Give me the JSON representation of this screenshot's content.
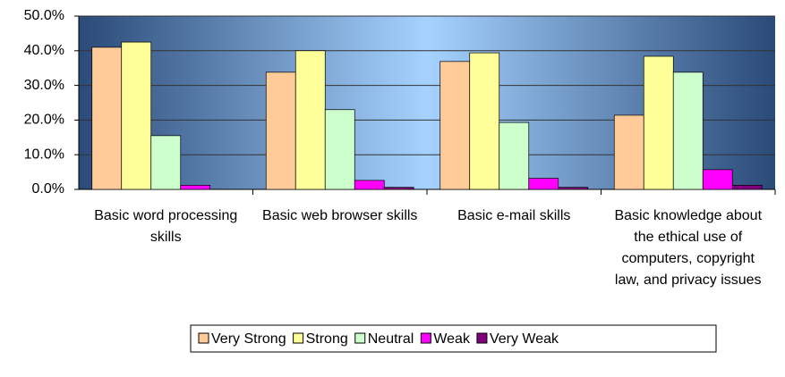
{
  "chart_data": {
    "type": "bar",
    "categories": [
      "Basic word processing skills",
      "Basic web browser skills",
      "Basic e-mail skills",
      "Basic knowledge about the ethical use of computers, copyright law, and privacy issues"
    ],
    "series": [
      {
        "name": "Very Strong",
        "color": "#ffcc99",
        "values": [
          41.0,
          33.8,
          36.9,
          21.4
        ]
      },
      {
        "name": "Strong",
        "color": "#ffff99",
        "values": [
          42.5,
          40.0,
          39.4,
          38.4
        ]
      },
      {
        "name": "Neutral",
        "color": "#ccffcc",
        "values": [
          15.5,
          23.0,
          19.3,
          33.8
        ]
      },
      {
        "name": "Weak",
        "color": "#ff00ff",
        "values": [
          1.2,
          2.6,
          3.2,
          5.7
        ]
      },
      {
        "name": "Very Weak",
        "color": "#800080",
        "values": [
          0,
          0.6,
          0.6,
          1.2
        ]
      }
    ],
    "ylim": [
      0,
      50
    ],
    "yticks": [
      {
        "value": 0,
        "label": "0.0%"
      },
      {
        "value": 10,
        "label": "10.0%"
      },
      {
        "value": 20,
        "label": "20.0%"
      },
      {
        "value": 30,
        "label": "30.0%"
      },
      {
        "value": 40,
        "label": "40.0%"
      },
      {
        "value": 50,
        "label": "50.0%"
      }
    ],
    "grid": true,
    "legend": "bottom"
  }
}
